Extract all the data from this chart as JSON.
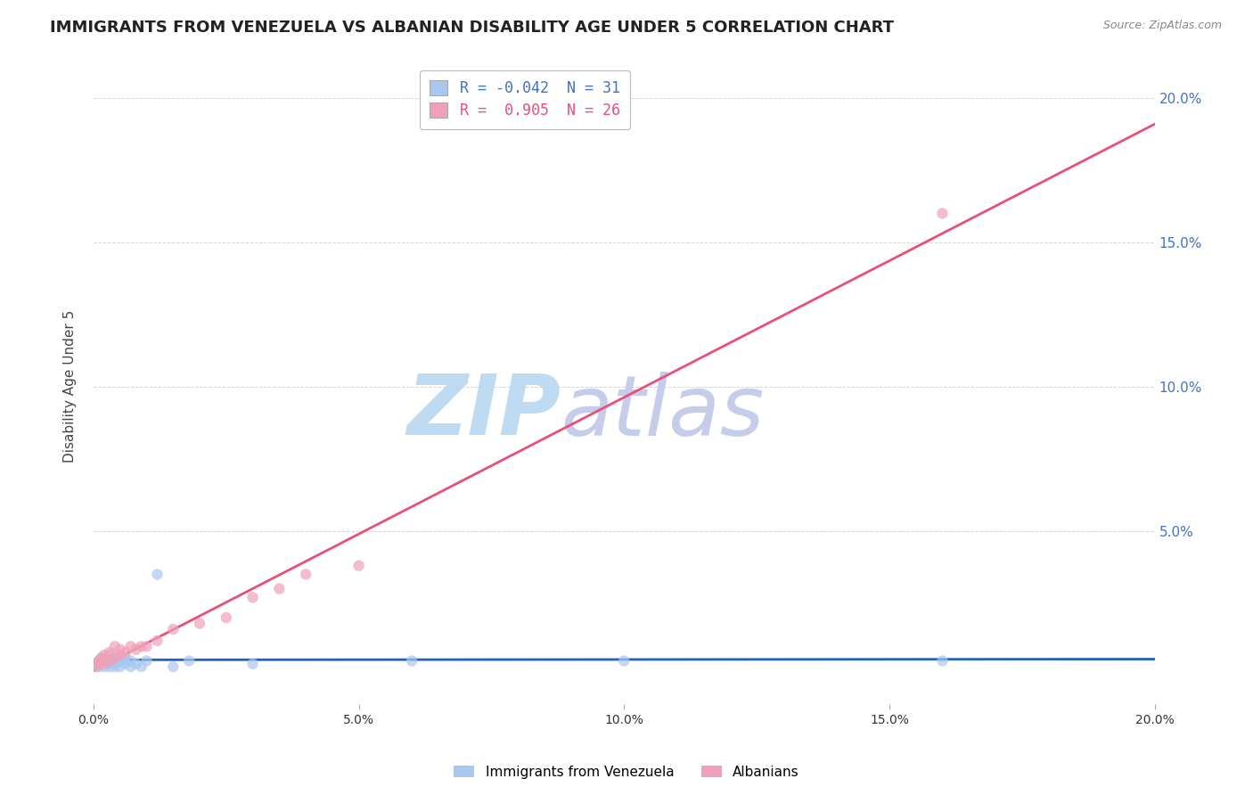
{
  "title": "IMMIGRANTS FROM VENEZUELA VS ALBANIAN DISABILITY AGE UNDER 5 CORRELATION CHART",
  "source": "Source: ZipAtlas.com",
  "ylabel": "Disability Age Under 5",
  "xlim": [
    0.0,
    0.2
  ],
  "ylim": [
    -0.01,
    0.21
  ],
  "xtick_labels": [
    "0.0%",
    "",
    "5.0%",
    "",
    "10.0%",
    "",
    "15.0%",
    "",
    "20.0%"
  ],
  "xtick_vals": [
    0.0,
    0.025,
    0.05,
    0.075,
    0.1,
    0.125,
    0.15,
    0.175,
    0.2
  ],
  "ytick_labels": [
    "5.0%",
    "10.0%",
    "15.0%",
    "20.0%"
  ],
  "ytick_vals": [
    0.05,
    0.1,
    0.15,
    0.2
  ],
  "legend_line1": "R = -0.042  N = 31",
  "legend_line2": "R =  0.905  N = 26",
  "series_venezuela": {
    "name": "Immigrants from Venezuela",
    "color": "#a8c8f0",
    "line_color": "#2060c0",
    "x": [
      0.0005,
      0.001,
      0.001,
      0.0015,
      0.0015,
      0.002,
      0.002,
      0.0025,
      0.003,
      0.003,
      0.003,
      0.004,
      0.004,
      0.004,
      0.005,
      0.005,
      0.005,
      0.006,
      0.006,
      0.007,
      0.007,
      0.008,
      0.009,
      0.01,
      0.012,
      0.015,
      0.018,
      0.03,
      0.06,
      0.1,
      0.16
    ],
    "y": [
      0.004,
      0.005,
      0.003,
      0.004,
      0.006,
      0.003,
      0.005,
      0.004,
      0.003,
      0.005,
      0.007,
      0.004,
      0.005,
      0.003,
      0.005,
      0.003,
      0.006,
      0.004,
      0.006,
      0.005,
      0.003,
      0.004,
      0.003,
      0.005,
      0.035,
      0.003,
      0.005,
      0.004,
      0.005,
      0.005,
      0.005
    ]
  },
  "series_albanian": {
    "name": "Albanians",
    "color": "#f0a0b8",
    "line_color": "#e8507a",
    "x": [
      0.0005,
      0.001,
      0.001,
      0.0015,
      0.002,
      0.002,
      0.003,
      0.003,
      0.004,
      0.004,
      0.005,
      0.005,
      0.006,
      0.007,
      0.008,
      0.009,
      0.01,
      0.012,
      0.015,
      0.02,
      0.025,
      0.03,
      0.035,
      0.04,
      0.05,
      0.16
    ],
    "y": [
      0.003,
      0.004,
      0.005,
      0.006,
      0.004,
      0.007,
      0.005,
      0.008,
      0.006,
      0.01,
      0.007,
      0.009,
      0.008,
      0.01,
      0.009,
      0.01,
      0.01,
      0.012,
      0.016,
      0.018,
      0.02,
      0.027,
      0.03,
      0.035,
      0.038,
      0.16
    ]
  },
  "watermark_zip": "ZIP",
  "watermark_atlas": "atlas",
  "watermark_color_zip": "#c5dff0",
  "watermark_color_atlas": "#c5c5f0",
  "background_color": "#ffffff",
  "grid_color": "#cccccc",
  "title_fontsize": 13,
  "axis_label_fontsize": 11,
  "tick_fontsize": 10,
  "right_tick_color": "#4472c4"
}
